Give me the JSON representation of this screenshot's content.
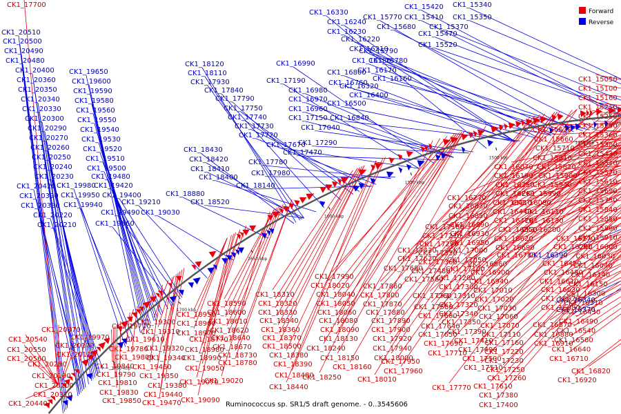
{
  "legend": {
    "forward_label": "Forward",
    "reverse_label": "Reverse",
    "forward_color": "#e8000b",
    "reverse_color": "#0000e0"
  },
  "caption": "Ruminococcus sp. SR1/5 draft genome. - 0..3545606",
  "ticks": [
    "1250 kbp",
    "1300 kbp",
    "1350 kbp",
    "1400 kbp",
    "1450 kbp",
    "1500 kbp",
    "1550 kbp",
    "1600 kbp",
    "1650 kbp",
    "1700 kbp",
    "1750 kbp"
  ],
  "reverse_labels": [
    "CK1_20510",
    "CK1_20500",
    "CK1_20490",
    "CK1_20480",
    "CK1_20400",
    "CK1_20360",
    "CK1_20350",
    "CK1_20340",
    "CK1_20330",
    "CK1_20300",
    "CK1_20290",
    "CK1_20270",
    "CK1_20260",
    "CK1_20250",
    "CK1_20240",
    "CK1_20230",
    "CK1_20420",
    "CK1_20390",
    "CK1_20380",
    "CK1_20220",
    "CK1_20210",
    "CK1_19650",
    "CK1_19600",
    "CK1_19590",
    "CK1_19580",
    "CK1_19560",
    "CK1_19550",
    "CK1_19540",
    "CK1_19530",
    "CK1_19520",
    "CK1_19510",
    "CK1_19500",
    "CK1_19480",
    "CK1_19420",
    "CK1_19400",
    "CK1_19980",
    "CK1_19950",
    "CK1_19940",
    "CK1_19490",
    "CK1_19660",
    "CK1_19210",
    "CK1_19030",
    "CK1_18880",
    "CK1_18120",
    "CK1_18110",
    "CK1_17930",
    "CK1_17840",
    "CK1_17790",
    "CK1_17750",
    "CK1_17740",
    "CK1_17730",
    "CK1_17720",
    "CK1_17670",
    "CK1_17470",
    "CK1_17290",
    "CK1_17780",
    "CK1_17980",
    "CK1_18140",
    "CK1_18430",
    "CK1_18420",
    "CK1_18410",
    "CK1_18400",
    "CK1_18520",
    "CK1_16990",
    "CK1_17190",
    "CK1_16980",
    "CK1_16970",
    "CK1_16960",
    "CK1_17150",
    "CK1_17040",
    "CK1_16840",
    "CK1_16800",
    "CK1_16760",
    "CK1_16500",
    "CK1_16330",
    "CK1_16240",
    "CK1_16230",
    "CK1_16220",
    "CK1_16210",
    "CK1_16180",
    "CK1_16170",
    "CK1_16160",
    "CK1_16320",
    "CK1_16400",
    "CK1_15790",
    "CK1_15780",
    "CK1_15770",
    "CK1_15680",
    "CK1_15420",
    "CK1_15410",
    "CK1_15470",
    "CK1_15520",
    "CK1_15340",
    "CK1_15350",
    "CK1_15370",
    "CK1_16390",
    "CK1_16340",
    "CK1_16370"
  ],
  "forward_labels_right": [
    "CK1_15050",
    "CK1_15100",
    "CK1_15160",
    "CK1_15210",
    "CK1_15250",
    "CK1_15290",
    "CK1_15360",
    "CK1_15380",
    "CK1_15430",
    "CK1_15510",
    "CK1_15570",
    "CK1_15610",
    "CK1_15690",
    "CK1_15750",
    "CK1_15840",
    "CK1_15850",
    "CK1_15880",
    "CK1_15910",
    "CK1_16000",
    "CK1_16030",
    "CK1_16040",
    "CK1_16140",
    "CK1_16150",
    "CK1_16300",
    "CK1_16310",
    "CK1_16430",
    "CK1_16490",
    "CK1_16540",
    "CK1_16560",
    "CK1_16640",
    "CK1_16710",
    "CK1_16820",
    "CK1_16920"
  ],
  "forward_labels_mid": [
    "CK1_15620",
    "CK1_15660",
    "CK1_15710",
    "CK1_15810",
    "CK1_15820",
    "CK1_15900",
    "CK1_15940",
    "CK1_15990",
    "CK1_16080",
    "CK1_16110",
    "CK1_16130",
    "CK1_16200",
    "CK1_16270",
    "CK1_16290",
    "CK1_16070",
    "CK1_16190",
    "CK1_16250",
    "CK1_16260",
    "CK1_16410",
    "CK1_16440",
    "CK1_16470",
    "CK1_16550",
    "CK1_16620",
    "CK1_16690",
    "CK1_16780",
    "CK1_16450",
    "CK1_16480",
    "CK1_16610",
    "CK1_16630",
    "CK1_16670",
    "CK1_16680",
    "CK1_16870",
    "CK1_16880",
    "CK1_16910"
  ],
  "forward_labels_center": [
    "CK1_16770",
    "CK1_16830",
    "CK1_16850",
    "CK1_16890",
    "CK1_16930",
    "CK1_16950",
    "CK1_16860",
    "CK1_16900",
    "CK1_16940",
    "CK1_17010",
    "CK1_17020",
    "CK1_17030",
    "CK1_17060",
    "CK1_17070",
    "CK1_17110",
    "CK1_17160",
    "CK1_17220",
    "CK1_17230",
    "CK1_17250",
    "CK1_17260",
    "CK1_17180",
    "CK1_17210",
    "CK1_17270",
    "CK1_17330",
    "CK1_17360",
    "CK1_17480",
    "CK1_17560",
    "CK1_17000",
    "CK1_17050",
    "CK1_17100",
    "CK1_17200",
    "CK1_17300",
    "CK1_17310",
    "CK1_17320",
    "CK1_17340",
    "CK1_17350",
    "CK1_17390",
    "CK1_17410",
    "CK1_17490",
    "CK1_17500",
    "CK1_17510",
    "CK1_17610",
    "CK1_17380",
    "CK1_17400",
    "CK1_17430",
    "CK1_17630",
    "CK1_17680",
    "CK1_17760",
    "CK1_17580",
    "CK1_17600",
    "CK1_17640",
    "CK1_17650",
    "CK1_17690",
    "CK1_17710",
    "CK1_17770",
    "CK1_17700"
  ],
  "forward_labels_lower": [
    "CK1_17990",
    "CK1_18020",
    "CK1_18040",
    "CK1_18050",
    "CK1_18060",
    "CK1_18080",
    "CK1_18090",
    "CK1_18130",
    "CK1_18150",
    "CK1_18160",
    "CK1_18010",
    "CK1_17800",
    "CK1_17870",
    "CK1_17860",
    "CK1_17880",
    "CK1_17890",
    "CK1_17900",
    "CK1_17920",
    "CK1_17940",
    "CK1_18000",
    "CK1_17950",
    "CK1_17960",
    "CK1_18310",
    "CK1_18320",
    "CK1_18330",
    "CK1_18340",
    "CK1_18360",
    "CK1_18370",
    "CK1_18500",
    "CK1_18380",
    "CK1_18390",
    "CK1_18480",
    "CK1_18440",
    "CK1_18240",
    "CK1_18250",
    "CK1_18590",
    "CK1_18600",
    "CK1_18610",
    "CK1_18620",
    "CK1_18640",
    "CK1_18670",
    "CK1_18730",
    "CK1_18780",
    "CK1_18950",
    "CK1_18960",
    "CK1_18970",
    "CK1_18770",
    "CK1_18980",
    "CK1_18990",
    "CK1_19050",
    "CK1_19070",
    "CK1_19020",
    "CK1_19090",
    "CK1_19300",
    "CK1_19310",
    "CK1_19320",
    "CK1_19340",
    "CK1_19350",
    "CK1_19380",
    "CK1_19440",
    "CK1_19470",
    "CK1_19460",
    "CK1_19610",
    "CK1_19770",
    "CK1_19780",
    "CK1_19800",
    "CK1_19840",
    "CK1_19790",
    "CK1_19810",
    "CK1_19830",
    "CK1_19850",
    "CK1_19970",
    "CK1_20370",
    "CK1_20170",
    "CK1_20180",
    "CK1_20280",
    "CK1_20190",
    "CK1_20200",
    "CK1_20310",
    "CK1_20440",
    "CK1_20540",
    "CK1_20550",
    "CK1_20560"
  ]
}
